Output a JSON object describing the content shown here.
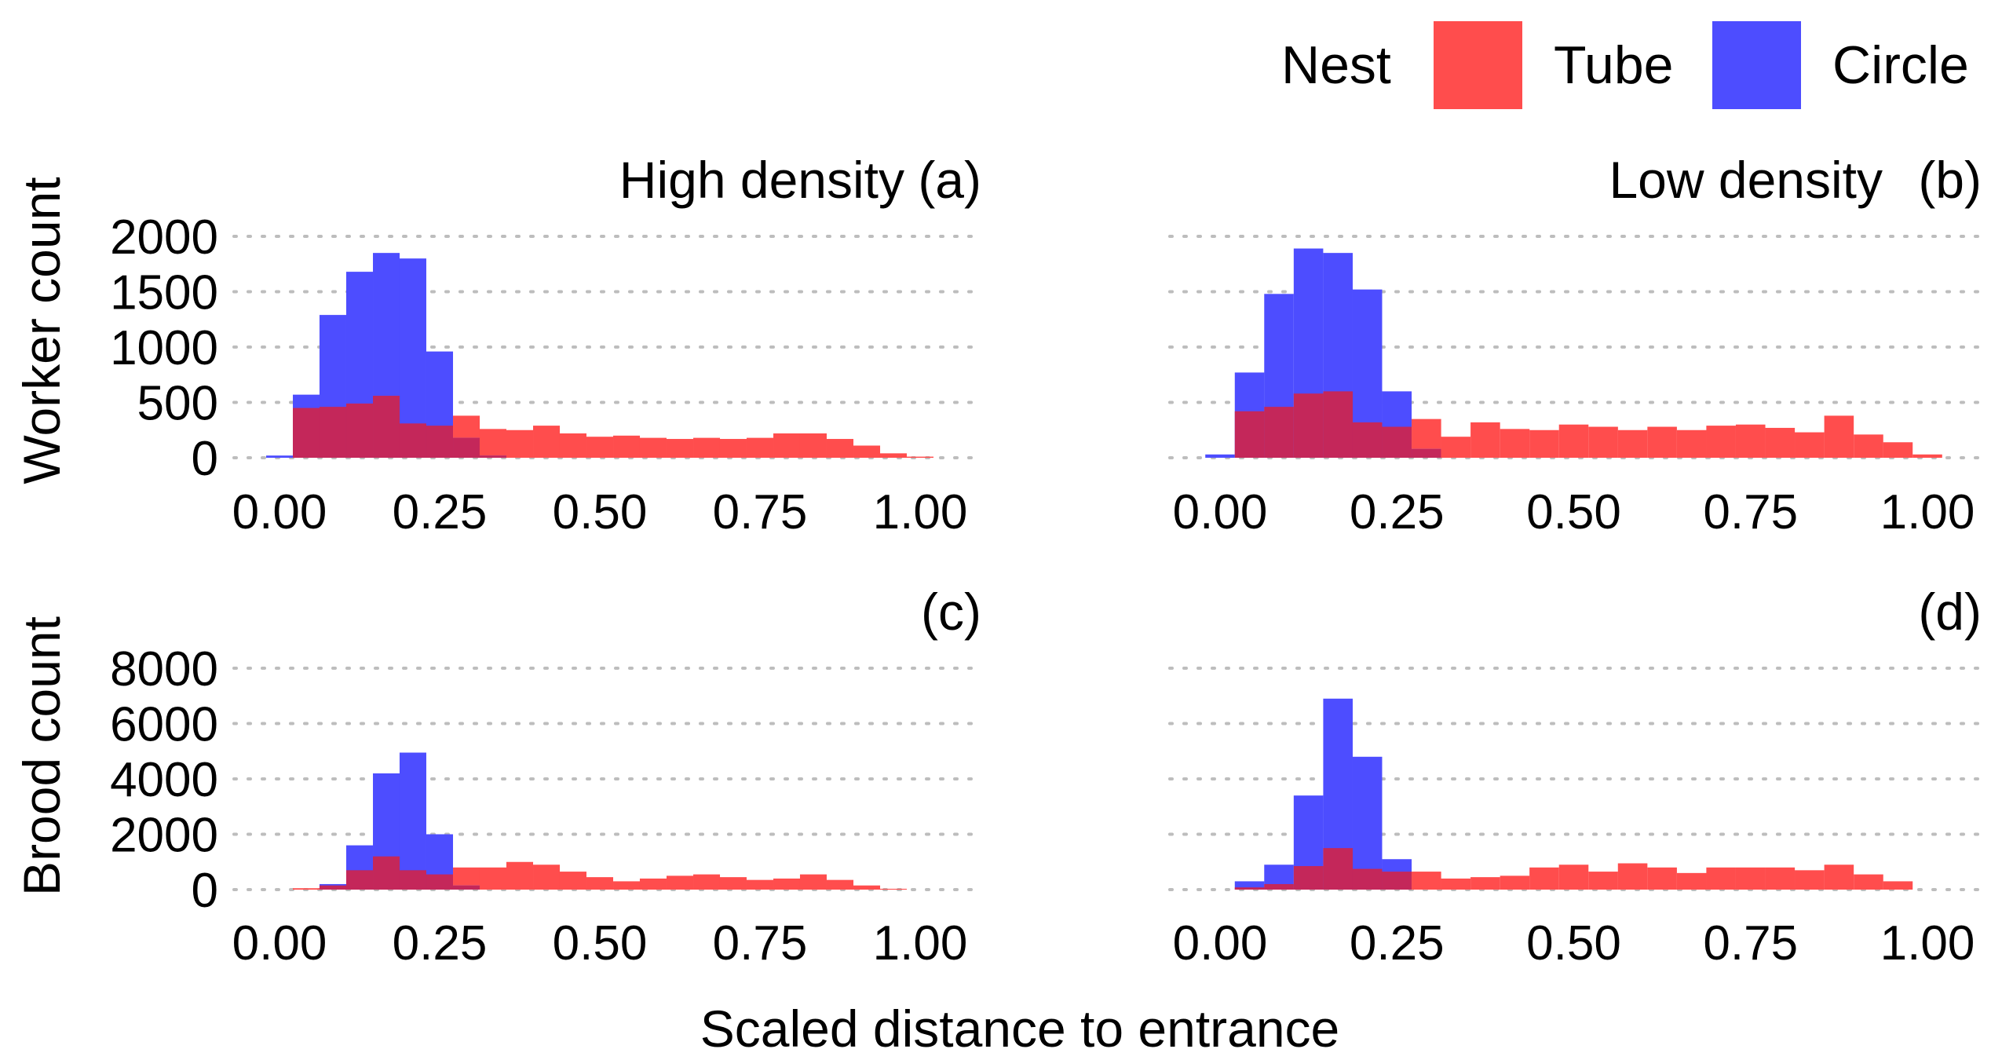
{
  "legend": {
    "title": "Nest",
    "items": [
      {
        "label": "Tube",
        "color": "#FF4D4D"
      },
      {
        "label": "Circle",
        "color": "#4D4DFF"
      }
    ]
  },
  "xlabel": "Scaled distance to entrance",
  "ylabels": {
    "worker": "Worker count",
    "brood": "Brood count"
  },
  "colors": {
    "tube": "#FF4D4D",
    "circle": "#4D4DFF",
    "overlap": "#C4275A",
    "grid": "#BDBDBD"
  },
  "chart_data": [
    {
      "type": "bar",
      "title": "High density",
      "tag": "(a)",
      "panel": "a",
      "xlim": [
        -0.05,
        1.05
      ],
      "ylim": [
        0,
        2000
      ],
      "xticks": [
        0.0,
        0.25,
        0.5,
        0.75,
        1.0
      ],
      "xtick_labels": [
        "0.00",
        "0.25",
        "0.50",
        "0.75",
        "1.00"
      ],
      "yticks": [
        0,
        500,
        1000,
        1500,
        2000
      ],
      "ytick_labels": [
        "0",
        "500",
        "1000",
        "1500",
        "2000"
      ],
      "grid": "horizontal-dotted",
      "bin_width": 0.0417,
      "series": [
        {
          "name": "Circle",
          "x": [
            0.0,
            0.0417,
            0.0833,
            0.125,
            0.1667,
            0.2083,
            0.25,
            0.2917,
            0.3333
          ],
          "values": [
            20,
            570,
            1290,
            1680,
            1850,
            1800,
            960,
            180,
            20
          ]
        },
        {
          "name": "Tube",
          "x": [
            0.0417,
            0.0833,
            0.125,
            0.1667,
            0.2083,
            0.25,
            0.2917,
            0.3333,
            0.375,
            0.4167,
            0.4583,
            0.5,
            0.5417,
            0.5833,
            0.625,
            0.6667,
            0.7083,
            0.75,
            0.7917,
            0.8333,
            0.875,
            0.9167,
            0.9583,
            1.0
          ],
          "values": [
            450,
            460,
            490,
            560,
            310,
            290,
            380,
            260,
            250,
            290,
            220,
            190,
            200,
            180,
            170,
            180,
            170,
            180,
            220,
            220,
            170,
            110,
            40,
            10
          ]
        }
      ]
    },
    {
      "type": "bar",
      "title": "Low density",
      "tag": "(b)",
      "panel": "b",
      "xlim": [
        -0.05,
        1.05
      ],
      "ylim": [
        0,
        2000
      ],
      "xticks": [
        0.0,
        0.25,
        0.5,
        0.75,
        1.0
      ],
      "xtick_labels": [
        "0.00",
        "0.25",
        "0.50",
        "0.75",
        "1.00"
      ],
      "yticks": [
        0,
        500,
        1000,
        1500,
        2000
      ],
      "ytick_labels": [
        "",
        "",
        "",
        "",
        ""
      ],
      "grid": "horizontal-dotted",
      "bin_width": 0.0417,
      "series": [
        {
          "name": "Circle",
          "x": [
            0.0,
            0.0417,
            0.0833,
            0.125,
            0.1667,
            0.2083,
            0.25,
            0.2917
          ],
          "values": [
            30,
            770,
            1480,
            1890,
            1850,
            1520,
            600,
            80
          ]
        },
        {
          "name": "Tube",
          "x": [
            0.0417,
            0.0833,
            0.125,
            0.1667,
            0.2083,
            0.25,
            0.2917,
            0.3333,
            0.375,
            0.4167,
            0.4583,
            0.5,
            0.5417,
            0.5833,
            0.625,
            0.6667,
            0.7083,
            0.75,
            0.7917,
            0.8333,
            0.875,
            0.9167,
            0.9583,
            1.0
          ],
          "values": [
            420,
            460,
            580,
            600,
            320,
            280,
            350,
            190,
            320,
            260,
            250,
            300,
            280,
            250,
            280,
            250,
            290,
            300,
            270,
            230,
            380,
            210,
            140,
            30
          ]
        }
      ]
    },
    {
      "type": "bar",
      "title": "",
      "tag": "(c)",
      "panel": "c",
      "xlim": [
        -0.05,
        1.05
      ],
      "ylim": [
        0,
        8000
      ],
      "xticks": [
        0.0,
        0.25,
        0.5,
        0.75,
        1.0
      ],
      "xtick_labels": [
        "0.00",
        "0.25",
        "0.50",
        "0.75",
        "1.00"
      ],
      "yticks": [
        0,
        2000,
        4000,
        6000,
        8000
      ],
      "ytick_labels": [
        "0",
        "2000",
        "4000",
        "6000",
        "8000"
      ],
      "grid": "horizontal-dotted",
      "bin_width": 0.0417,
      "series": [
        {
          "name": "Circle",
          "x": [
            0.0833,
            0.125,
            0.1667,
            0.2083,
            0.25,
            0.2917
          ],
          "values": [
            200,
            1600,
            4200,
            4950,
            2000,
            150
          ]
        },
        {
          "name": "Tube",
          "x": [
            0.0417,
            0.0833,
            0.125,
            0.1667,
            0.2083,
            0.25,
            0.2917,
            0.3333,
            0.375,
            0.4167,
            0.4583,
            0.5,
            0.5417,
            0.5833,
            0.625,
            0.6667,
            0.7083,
            0.75,
            0.7917,
            0.8333,
            0.875,
            0.9167,
            0.9583
          ],
          "values": [
            50,
            150,
            700,
            1200,
            700,
            550,
            800,
            800,
            1000,
            900,
            650,
            450,
            300,
            400,
            500,
            550,
            450,
            350,
            400,
            550,
            350,
            150,
            30
          ]
        }
      ]
    },
    {
      "type": "bar",
      "title": "",
      "tag": "(d)",
      "panel": "d",
      "xlim": [
        -0.05,
        1.05
      ],
      "ylim": [
        0,
        8000
      ],
      "xticks": [
        0.0,
        0.25,
        0.5,
        0.75,
        1.0
      ],
      "xtick_labels": [
        "0.00",
        "0.25",
        "0.50",
        "0.75",
        "1.00"
      ],
      "yticks": [
        0,
        2000,
        4000,
        6000,
        8000
      ],
      "ytick_labels": [
        "",
        "",
        "",
        "",
        ""
      ],
      "grid": "horizontal-dotted",
      "bin_width": 0.0417,
      "series": [
        {
          "name": "Circle",
          "x": [
            0.0417,
            0.0833,
            0.125,
            0.1667,
            0.2083,
            0.25
          ],
          "values": [
            300,
            900,
            3400,
            6900,
            4800,
            1100
          ]
        },
        {
          "name": "Tube",
          "x": [
            0.0417,
            0.0833,
            0.125,
            0.1667,
            0.2083,
            0.25,
            0.2917,
            0.3333,
            0.375,
            0.4167,
            0.4583,
            0.5,
            0.5417,
            0.5833,
            0.625,
            0.6667,
            0.7083,
            0.75,
            0.7917,
            0.8333,
            0.875,
            0.9167,
            0.9583
          ],
          "values": [
            80,
            200,
            850,
            1500,
            750,
            650,
            650,
            400,
            450,
            500,
            800,
            900,
            650,
            950,
            800,
            600,
            800,
            800,
            800,
            700,
            900,
            550,
            300
          ]
        }
      ]
    }
  ]
}
